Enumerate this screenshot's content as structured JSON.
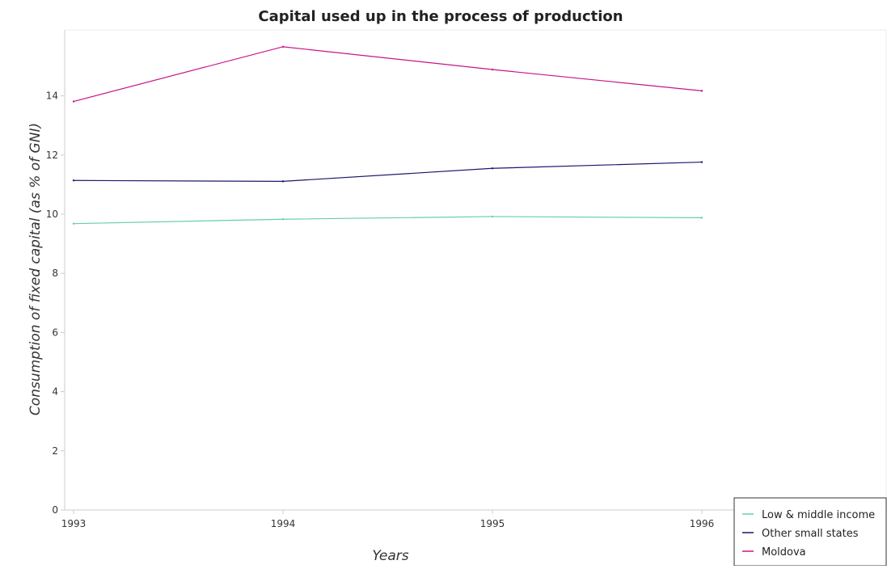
{
  "chart_data": {
    "type": "line",
    "title": "Capital used up in the process of production",
    "xlabel": "Years",
    "ylabel": "Consumption of fixed capital (as % of GNI)",
    "x": [
      "1993",
      "1994",
      "1995",
      "1996"
    ],
    "ylim": [
      0,
      16
    ],
    "yticks": [
      "0",
      "2",
      "4",
      "6",
      "8",
      "10",
      "12",
      "14"
    ],
    "grid": false,
    "legend_position": "bottom-right",
    "series": [
      {
        "name": "Low & middle income",
        "color": "#66cdaa",
        "values": [
          9.68,
          9.83,
          9.92,
          9.88
        ]
      },
      {
        "name": "Other small states",
        "color": "#191970",
        "values": [
          11.14,
          11.11,
          11.55,
          11.76
        ]
      },
      {
        "name": "Moldova",
        "color": "#c71585",
        "values": [
          13.81,
          15.66,
          14.89,
          14.17
        ]
      }
    ]
  }
}
